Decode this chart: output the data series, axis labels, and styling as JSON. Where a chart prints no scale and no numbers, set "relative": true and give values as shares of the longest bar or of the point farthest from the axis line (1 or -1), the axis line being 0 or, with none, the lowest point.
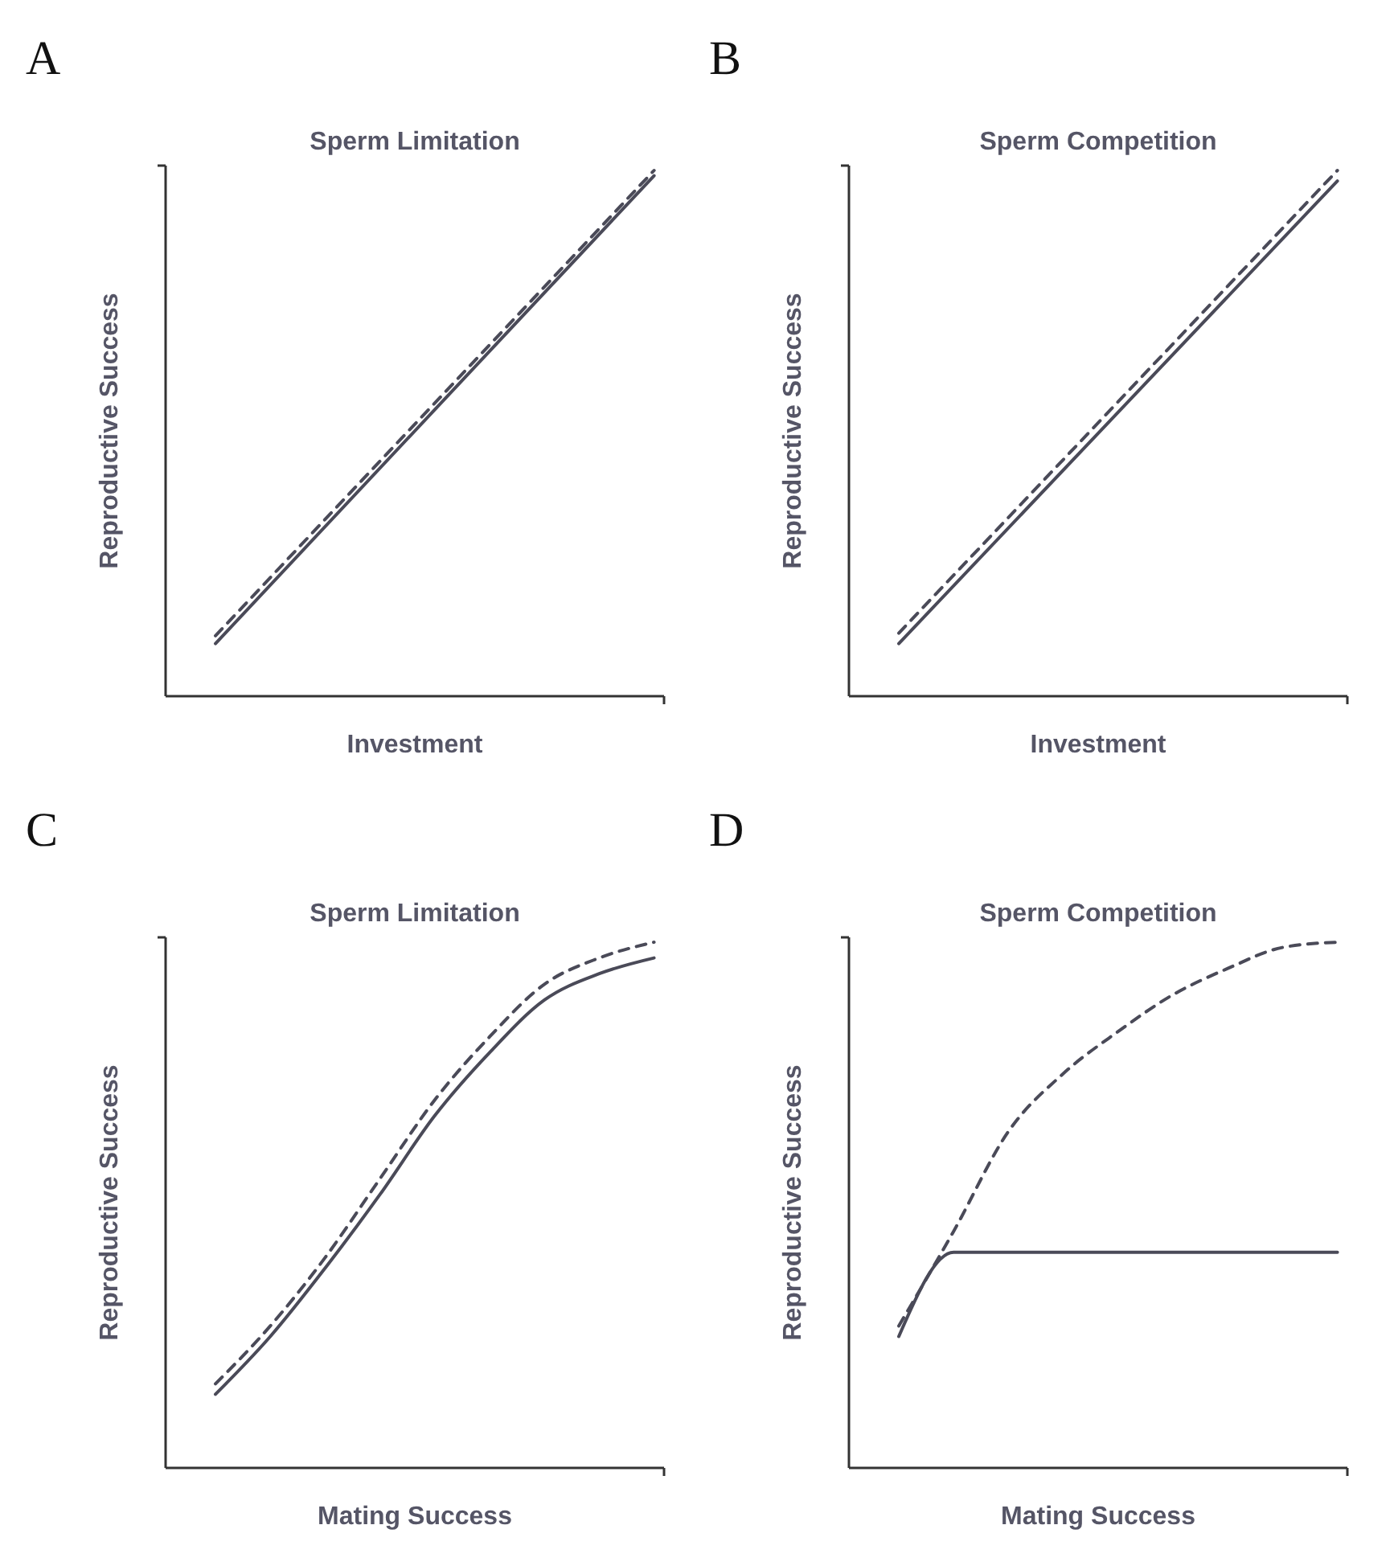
{
  "chart_data": [
    {
      "type": "line",
      "title": "Sperm Limitation",
      "xlabel": "Investment",
      "ylabel": "Reproductive Success",
      "annotations": [
        "A"
      ],
      "relative": true,
      "categories": [
        null,
        null
      ],
      "marker": "none",
      "series": [
        {
          "color": "#4a4a58",
          "line_style": "solid",
          "values": [
            0.1,
            0.99
          ]
        },
        {
          "color": "#4a4a58",
          "line_style": "dashed",
          "values": [
            0.115,
            1
          ]
        }
      ]
    },
    {
      "type": "line",
      "title": "Sperm Competition",
      "xlabel": "Investment",
      "ylabel": "Reproductive Success",
      "annotations": [
        "B"
      ],
      "relative": true,
      "categories": [
        null,
        null
      ],
      "marker": "none",
      "series": [
        {
          "color": "#4a4a58",
          "line_style": "solid",
          "values": [
            0.1,
            0.98
          ]
        },
        {
          "color": "#4a4a58",
          "line_style": "dashed",
          "values": [
            0.12,
            1
          ]
        }
      ]
    },
    {
      "type": "line",
      "title": "Sperm Limitation",
      "xlabel": "Mating Success",
      "ylabel": "Reproductive Success",
      "annotations": [
        "C"
      ],
      "relative": true,
      "categories": [
        null,
        null,
        null,
        null,
        null,
        null,
        null,
        null,
        null
      ],
      "marker": "none",
      "series": [
        {
          "color": "#4a4a58",
          "line_style": "solid",
          "values": [
            0.14,
            0.25,
            0.38,
            0.52,
            0.67,
            0.79,
            0.89,
            0.94,
            0.97
          ]
        },
        {
          "color": "#4a4a58",
          "line_style": "dashed",
          "values": [
            0.16,
            0.27,
            0.4,
            0.55,
            0.7,
            0.82,
            0.92,
            0.97,
            1
          ]
        }
      ]
    },
    {
      "type": "line",
      "title": "Sperm Competition",
      "xlabel": "Mating Success",
      "ylabel": "Reproductive Success",
      "annotations": [
        "D"
      ],
      "relative": true,
      "categories": [
        null,
        null,
        null,
        null,
        null,
        null,
        null,
        null,
        null
      ],
      "marker": "none",
      "series": [
        {
          "color": "#4a4a58",
          "line_style": "solid",
          "values": [
            0.25,
            0.41,
            0.41,
            0.41,
            0.41,
            0.41,
            0.41,
            0.41,
            0.41
          ]
        },
        {
          "color": "#4a4a58",
          "line_style": "dashed",
          "values": [
            0.27,
            0.45,
            0.64,
            0.75,
            0.83,
            0.9,
            0.95,
            0.99,
            1
          ]
        }
      ]
    }
  ]
}
